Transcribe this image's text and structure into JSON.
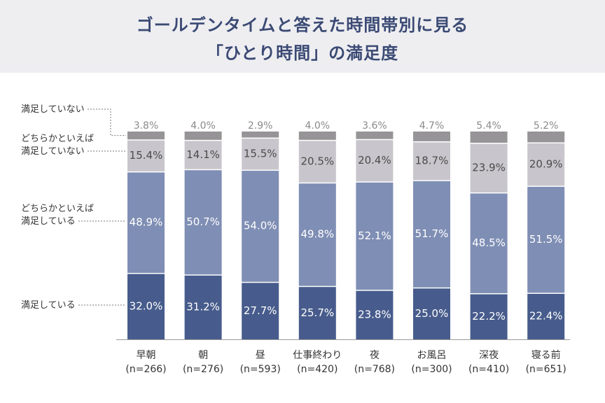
{
  "title": {
    "line1": "ゴールデンタイムと答えた時間帯別に見る",
    "line2": "「ひとり時間」の満足度"
  },
  "colors": {
    "header_bg": "#eeeef1",
    "title": "#3b4a74",
    "seg_satisfied": "#475c8c",
    "seg_somewhat_satisfied": "#7f8eb4",
    "seg_somewhat_unsatisfied": "#c8c6cc",
    "seg_unsatisfied": "#969496"
  },
  "chart_data": {
    "type": "bar",
    "stacked": true,
    "orientation": "vertical",
    "value_unit": "%",
    "categories": [
      "早朝",
      "朝",
      "昼",
      "仕事終わり",
      "夜",
      "お風呂",
      "深夜",
      "寝る前"
    ],
    "sample_sizes": [
      "(n=266)",
      "(n=276)",
      "(n=593)",
      "(n=420)",
      "(n=768)",
      "(n=300)",
      "(n=410)",
      "(n=651)"
    ],
    "ylim": [
      0,
      100
    ],
    "grid": false,
    "legend_placement": "left",
    "series": [
      {
        "name": "満足している",
        "values": [
          32.0,
          31.2,
          27.7,
          25.7,
          23.8,
          25.0,
          22.2,
          22.4
        ]
      },
      {
        "name": "どちらかといえば\n満足している",
        "values": [
          48.9,
          50.7,
          54.0,
          49.8,
          52.1,
          51.7,
          48.5,
          51.5
        ]
      },
      {
        "name": "どちらかといえば\n満足していない",
        "values": [
          15.4,
          14.1,
          15.5,
          20.5,
          20.4,
          18.7,
          23.9,
          20.9
        ]
      },
      {
        "name": "満足していない",
        "values": [
          3.8,
          4.0,
          2.9,
          4.0,
          3.6,
          4.7,
          5.4,
          5.2
        ]
      }
    ]
  }
}
